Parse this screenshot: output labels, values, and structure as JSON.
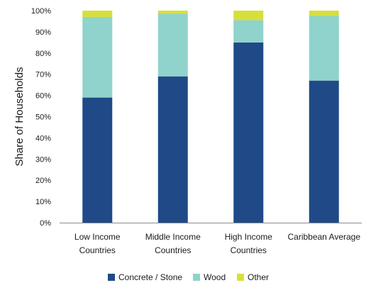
{
  "chart_data": {
    "type": "bar",
    "stacked": true,
    "title": "",
    "xlabel": "",
    "ylabel": "Share of Households",
    "ylim": [
      0,
      100
    ],
    "yticks": [
      "0%",
      "10%",
      "20%",
      "30%",
      "40%",
      "50%",
      "60%",
      "70%",
      "80%",
      "90%",
      "100%"
    ],
    "categories": [
      [
        "Low Income",
        "Countries"
      ],
      [
        "Middle Income",
        "Countries"
      ],
      [
        "High Income",
        "Countries"
      ],
      [
        "Caribbean Average"
      ]
    ],
    "series": [
      {
        "name": "Concrete / Stone",
        "color": "#1f4a87",
        "values": [
          59,
          69,
          85,
          67
        ]
      },
      {
        "name": "Wood",
        "color": "#8fd3cc",
        "values": [
          38,
          29.5,
          10.5,
          30.5
        ]
      },
      {
        "name": "Other",
        "color": "#d7df3c",
        "values": [
          3,
          1.5,
          4.5,
          2.5
        ]
      }
    ],
    "grid": false,
    "legend_position": "bottom"
  }
}
